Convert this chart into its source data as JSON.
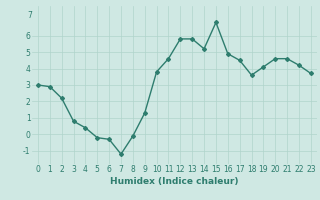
{
  "x": [
    0,
    1,
    2,
    3,
    4,
    5,
    6,
    7,
    8,
    9,
    10,
    11,
    12,
    13,
    14,
    15,
    16,
    17,
    18,
    19,
    20,
    21,
    22,
    23
  ],
  "y": [
    3.0,
    2.9,
    2.2,
    0.8,
    0.4,
    -0.2,
    -0.3,
    -1.2,
    -0.1,
    1.3,
    3.8,
    4.6,
    5.8,
    5.8,
    5.2,
    6.8,
    4.9,
    4.5,
    3.6,
    4.1,
    4.6,
    4.6,
    4.2,
    3.7
  ],
  "line_color": "#2e7d6e",
  "marker": "D",
  "marker_size": 2.0,
  "linewidth": 1.0,
  "xlabel": "Humidex (Indice chaleur)",
  "ylim": [
    -1.8,
    7.8
  ],
  "xlim": [
    -0.5,
    23.5
  ],
  "yticks": [
    -1,
    0,
    1,
    2,
    3,
    4,
    5,
    6
  ],
  "xticks": [
    0,
    1,
    2,
    3,
    4,
    5,
    6,
    7,
    8,
    9,
    10,
    11,
    12,
    13,
    14,
    15,
    16,
    17,
    18,
    19,
    20,
    21,
    22,
    23
  ],
  "bg_color": "#cfe8e3",
  "grid_color": "#b0d4cc",
  "tick_label_size": 5.5,
  "xlabel_size": 6.5
}
